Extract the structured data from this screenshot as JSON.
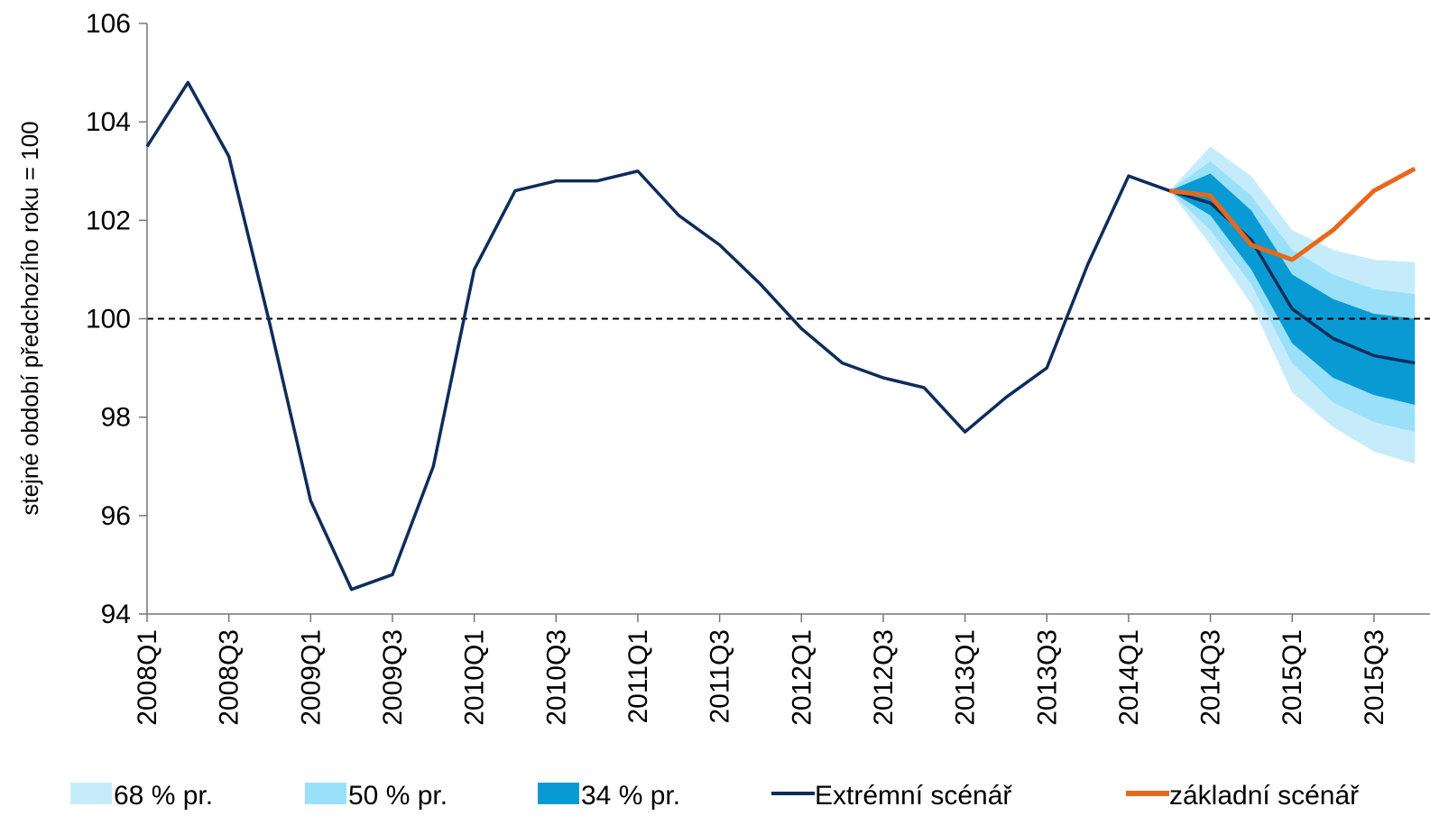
{
  "chart_data": {
    "type": "line",
    "ylabel": "stejné období předchozího roku = 100",
    "categories": [
      "2008Q1",
      null,
      "2008Q3",
      null,
      "2009Q1",
      null,
      "2009Q3",
      null,
      "2010Q1",
      null,
      "2010Q3",
      null,
      "2011Q1",
      null,
      "2011Q3",
      null,
      "2012Q1",
      null,
      "2012Q3",
      null,
      "2013Q1",
      null,
      "2013Q3",
      null,
      "2014Q1",
      null,
      "2014Q3",
      null,
      "2015Q1",
      null,
      "2015Q3",
      null
    ],
    "ylim": [
      94,
      106
    ],
    "yticks": [
      94,
      96,
      98,
      100,
      102,
      104,
      106
    ],
    "refline": 100,
    "bands": [
      {
        "name": "68 % pr.",
        "color": "#c6ecfb",
        "high": [
          null,
          null,
          null,
          null,
          null,
          null,
          null,
          null,
          null,
          null,
          null,
          null,
          null,
          null,
          null,
          null,
          null,
          null,
          null,
          null,
          null,
          null,
          null,
          null,
          null,
          102.6,
          103.5,
          102.9,
          101.8,
          101.4,
          101.2,
          101.15
        ],
        "low": [
          null,
          null,
          null,
          null,
          null,
          null,
          null,
          null,
          null,
          null,
          null,
          null,
          null,
          null,
          null,
          null,
          null,
          null,
          null,
          null,
          null,
          null,
          null,
          null,
          null,
          102.6,
          101.5,
          100.3,
          98.5,
          97.8,
          97.3,
          97.05
        ]
      },
      {
        "name": "50 % pr.",
        "color": "#9ae0f8",
        "high": [
          null,
          null,
          null,
          null,
          null,
          null,
          null,
          null,
          null,
          null,
          null,
          null,
          null,
          null,
          null,
          null,
          null,
          null,
          null,
          null,
          null,
          null,
          null,
          null,
          null,
          102.6,
          103.2,
          102.5,
          101.4,
          100.9,
          100.6,
          100.5
        ],
        "low": [
          null,
          null,
          null,
          null,
          null,
          null,
          null,
          null,
          null,
          null,
          null,
          null,
          null,
          null,
          null,
          null,
          null,
          null,
          null,
          null,
          null,
          null,
          null,
          null,
          null,
          102.6,
          101.8,
          100.7,
          99.1,
          98.3,
          97.9,
          97.7
        ]
      },
      {
        "name": "34 % pr.",
        "color": "#0a9ad3",
        "high": [
          null,
          null,
          null,
          null,
          null,
          null,
          null,
          null,
          null,
          null,
          null,
          null,
          null,
          null,
          null,
          null,
          null,
          null,
          null,
          null,
          null,
          null,
          null,
          null,
          null,
          102.6,
          102.95,
          102.2,
          100.9,
          100.4,
          100.1,
          100.0
        ],
        "low": [
          null,
          null,
          null,
          null,
          null,
          null,
          null,
          null,
          null,
          null,
          null,
          null,
          null,
          null,
          null,
          null,
          null,
          null,
          null,
          null,
          null,
          null,
          null,
          null,
          null,
          102.6,
          102.1,
          101.0,
          99.5,
          98.8,
          98.45,
          98.25
        ]
      }
    ],
    "series": [
      {
        "name": "Extrémní scénář",
        "color": "#0d2d5a",
        "values": [
          103.5,
          104.8,
          103.3,
          99.9,
          96.3,
          94.5,
          94.8,
          97.0,
          101.0,
          102.6,
          102.8,
          102.8,
          103.0,
          102.1,
          101.5,
          100.7,
          99.8,
          99.1,
          98.8,
          98.6,
          97.7,
          98.4,
          99.0,
          101.1,
          102.9,
          102.6,
          102.35,
          101.6,
          100.2,
          99.6,
          99.25,
          99.1
        ]
      },
      {
        "name": "základní scénář",
        "color": "#e8681a",
        "values": [
          null,
          null,
          null,
          null,
          null,
          null,
          null,
          null,
          null,
          null,
          null,
          null,
          null,
          null,
          null,
          null,
          null,
          null,
          null,
          null,
          null,
          null,
          null,
          null,
          null,
          102.6,
          102.5,
          101.5,
          101.2,
          101.8,
          102.6,
          103.05
        ]
      }
    ]
  }
}
